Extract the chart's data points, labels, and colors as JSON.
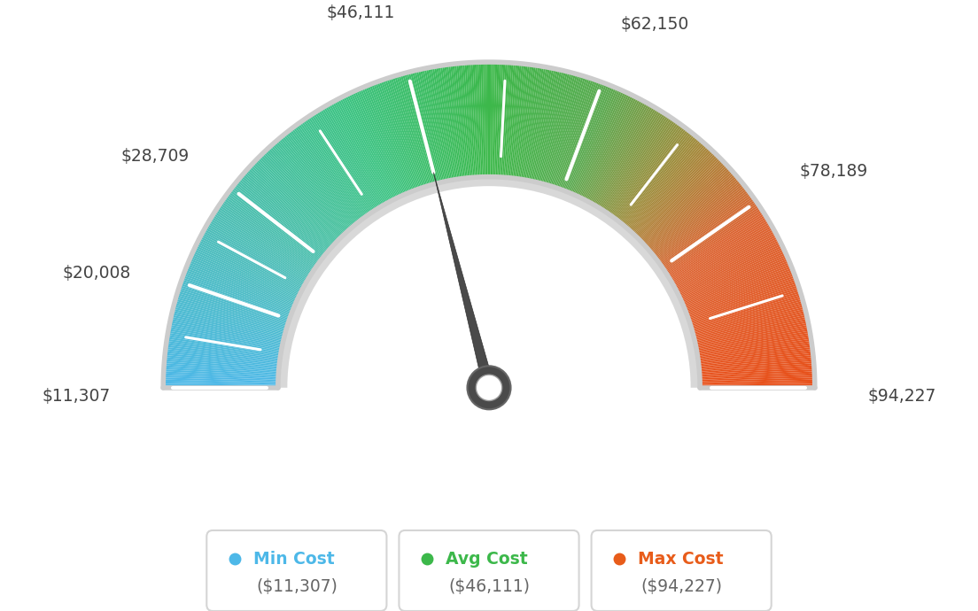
{
  "min_val": 11307,
  "max_val": 94227,
  "avg_val": 46111,
  "tick_labels": [
    "$11,307",
    "$20,008",
    "$28,709",
    "$46,111",
    "$62,150",
    "$78,189",
    "$94,227"
  ],
  "tick_values": [
    11307,
    20008,
    28709,
    46111,
    62150,
    78189,
    94227
  ],
  "legend_items": [
    {
      "label": "Min Cost",
      "value": "($11,307)",
      "color": "#4db8e8"
    },
    {
      "label": "Avg Cost",
      "value": "($46,111)",
      "color": "#3cb84a"
    },
    {
      "label": "Max Cost",
      "value": "($94,227)",
      "color": "#e85c1a"
    }
  ],
  "background_color": "#ffffff",
  "color_stops": [
    [
      0.0,
      [
        77,
        184,
        232
      ]
    ],
    [
      0.18,
      [
        77,
        190,
        180
      ]
    ],
    [
      0.35,
      [
        60,
        195,
        130
      ]
    ],
    [
      0.5,
      [
        60,
        184,
        74
      ]
    ],
    [
      0.62,
      [
        90,
        170,
        80
      ]
    ],
    [
      0.72,
      [
        160,
        140,
        60
      ]
    ],
    [
      0.82,
      [
        220,
        100,
        50
      ]
    ],
    [
      1.0,
      [
        232,
        80,
        26
      ]
    ]
  ]
}
